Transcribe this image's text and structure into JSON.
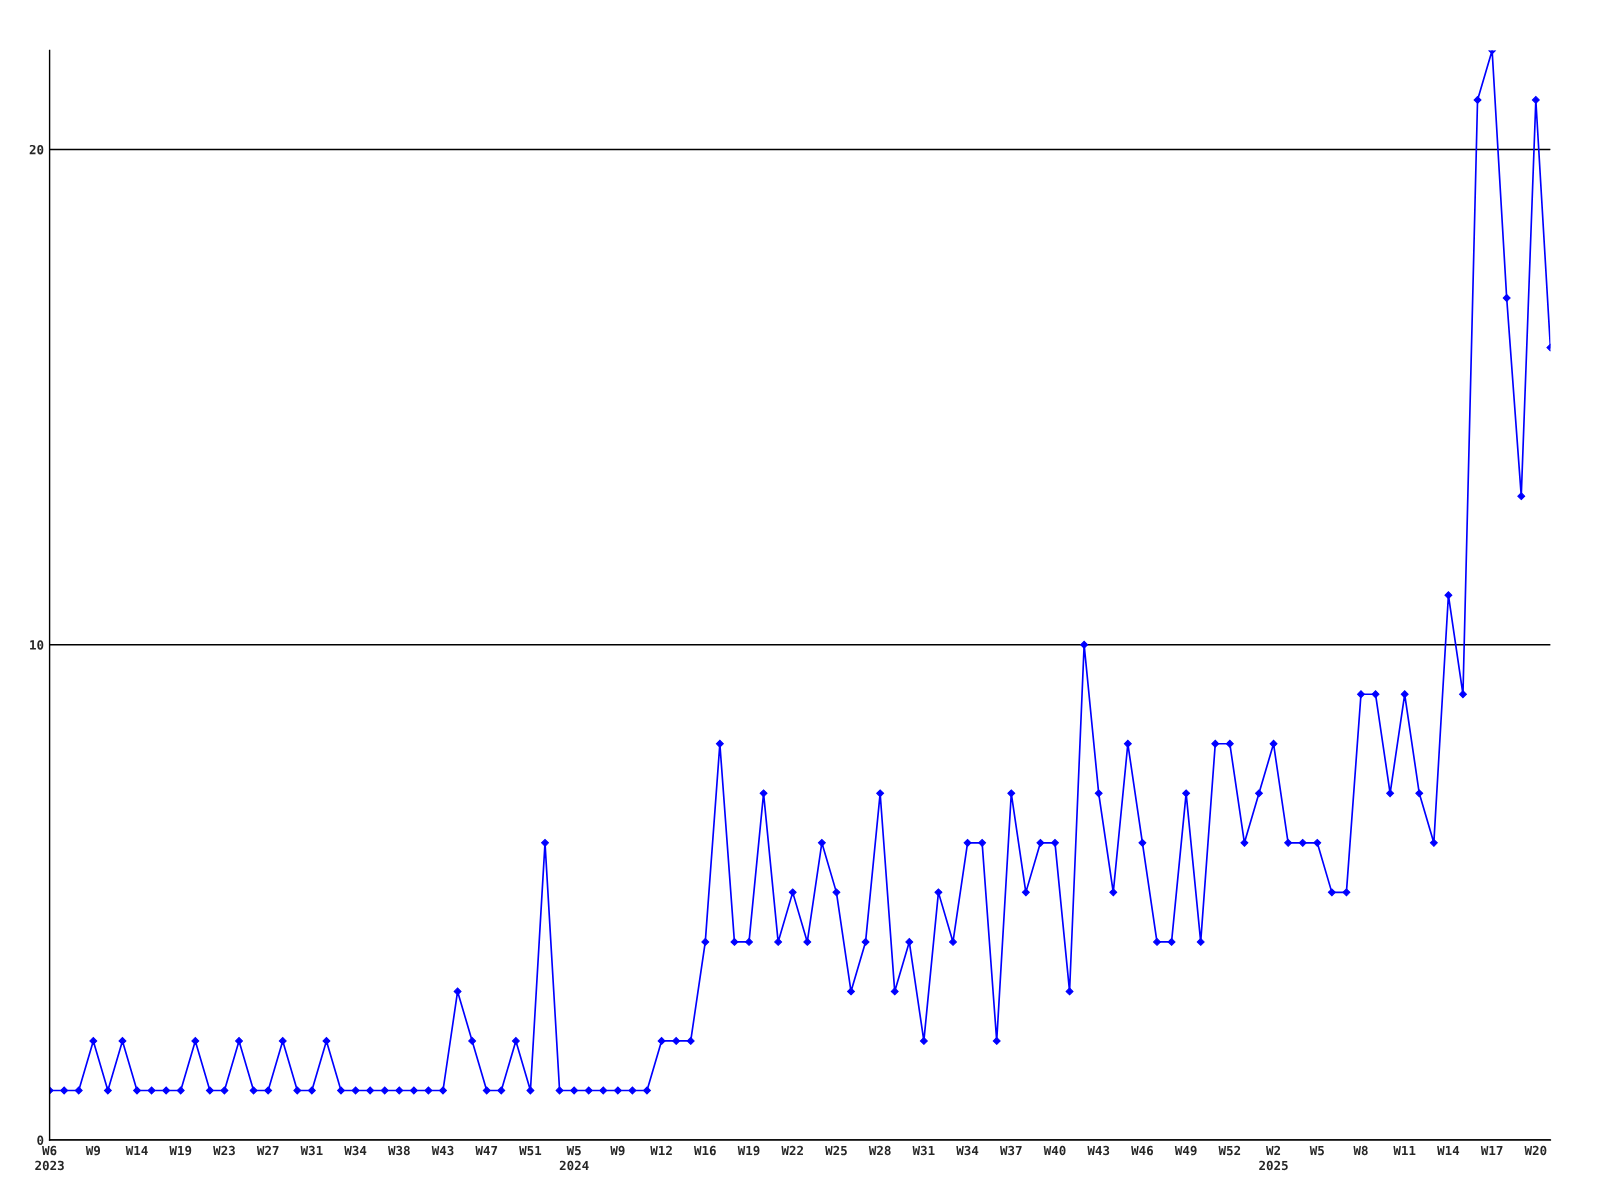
{
  "chart_data": {
    "type": "line",
    "categories": [
      "W6\n2023",
      null,
      null,
      "W9",
      null,
      null,
      "W14",
      null,
      null,
      "W19",
      null,
      null,
      "W23",
      null,
      null,
      "W27",
      null,
      null,
      "W31",
      null,
      null,
      "W34",
      null,
      null,
      "W38",
      null,
      null,
      "W43",
      null,
      null,
      "W47",
      null,
      null,
      "W51",
      null,
      null,
      "W5\n2024",
      null,
      null,
      "W9",
      null,
      null,
      "W12",
      null,
      null,
      "W16",
      null,
      null,
      "W19",
      null,
      null,
      "W22",
      null,
      null,
      "W25",
      null,
      null,
      "W28",
      null,
      null,
      "W31",
      null,
      null,
      "W34",
      null,
      null,
      "W37",
      null,
      null,
      "W40",
      null,
      null,
      "W43",
      null,
      null,
      "W46",
      null,
      null,
      "W49",
      null,
      null,
      "W52",
      null,
      null,
      "W2\n2025",
      null,
      null,
      "W5",
      null,
      null,
      "W8",
      null,
      null,
      "W11",
      null,
      null,
      "W14",
      null,
      null,
      "W17",
      null,
      null,
      "W20",
      null
    ],
    "series": [
      {
        "color": "#0000ff",
        "values": [
          1,
          1,
          1,
          2,
          1,
          2,
          1,
          1,
          1,
          1,
          2,
          1,
          1,
          2,
          1,
          1,
          2,
          1,
          1,
          2,
          1,
          1,
          1,
          1,
          1,
          1,
          1,
          1,
          3,
          2,
          1,
          1,
          2,
          1,
          6,
          1,
          1,
          1,
          1,
          1,
          1,
          1,
          2,
          2,
          2,
          4,
          8,
          4,
          4,
          7,
          4,
          5,
          4,
          6,
          5,
          3,
          4,
          7,
          3,
          4,
          2,
          5,
          4,
          6,
          6,
          2,
          7,
          5,
          6,
          6,
          3,
          10,
          7,
          5,
          8,
          6,
          4,
          4,
          7,
          4,
          8,
          8,
          6,
          7,
          8,
          6,
          6,
          6,
          5,
          5,
          9,
          9,
          7,
          9,
          7,
          6,
          11,
          9,
          21,
          22,
          17,
          13,
          21,
          16
        ]
      }
    ],
    "ylim": [
      0,
      22
    ],
    "yticks": [
      0,
      10,
      20
    ],
    "grid": "y",
    "marker": "diamond",
    "line_style": "solid"
  }
}
